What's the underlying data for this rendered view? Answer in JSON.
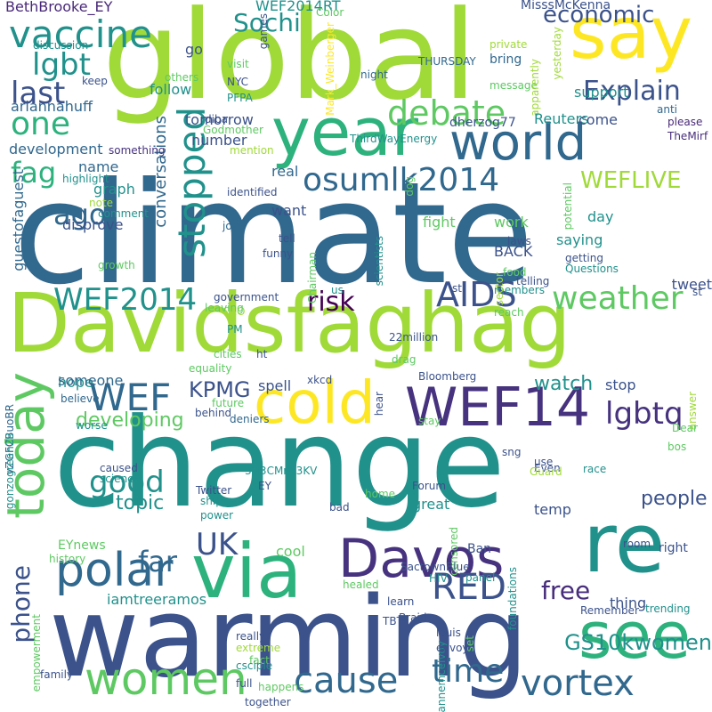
{
  "words": [
    {
      "text": "climate",
      "color": "#31688e"
    },
    {
      "text": "change",
      "color": "#21918c"
    },
    {
      "text": "global",
      "color": "#a0da39"
    },
    {
      "text": "warming",
      "color": "#3b528b"
    },
    {
      "text": "Davidsfaghag",
      "color": "#a0da39"
    },
    {
      "text": "year",
      "color": "#2db27d"
    },
    {
      "text": "via",
      "color": "#2db27d"
    },
    {
      "text": "say",
      "color": "#fde725"
    },
    {
      "text": "world",
      "color": "#31688e"
    },
    {
      "text": "re",
      "color": "#21918c"
    },
    {
      "text": "see",
      "color": "#2db27d"
    },
    {
      "text": "cold",
      "color": "#fde725"
    },
    {
      "text": "WEF14",
      "color": "#46327e"
    },
    {
      "text": "today",
      "color": "#5ec962"
    },
    {
      "text": "Davos",
      "color": "#46327e"
    },
    {
      "text": "women",
      "color": "#5ec962"
    },
    {
      "text": "cause",
      "color": "#31688e"
    },
    {
      "text": "vortex",
      "color": "#31688e"
    },
    {
      "text": "polar",
      "color": "#31688e"
    },
    {
      "text": "vaccine",
      "color": "#21918c"
    },
    {
      "text": "debate",
      "color": "#5ec962"
    },
    {
      "text": "WEF",
      "color": "#31688e"
    },
    {
      "text": "AIDS",
      "color": "#3b528b"
    },
    {
      "text": "weather",
      "color": "#5ec962"
    },
    {
      "text": "RED",
      "color": "#3b528b"
    },
    {
      "text": "time",
      "color": "#31688e"
    },
    {
      "text": "stopped",
      "color": "#21918c"
    },
    {
      "text": "osumlk2014",
      "color": "#31688e"
    },
    {
      "text": "Explain",
      "color": "#3b528b"
    },
    {
      "text": "one",
      "color": "#2db27d"
    },
    {
      "text": "last",
      "color": "#3b528b"
    },
    {
      "text": "lgbt",
      "color": "#21918c"
    },
    {
      "text": "fag",
      "color": "#2db27d"
    },
    {
      "text": "ago",
      "color": "#31688e"
    },
    {
      "text": "WEF2014",
      "color": "#21918c"
    },
    {
      "text": "risk",
      "color": "#440154"
    },
    {
      "text": "lgbtq",
      "color": "#46327e"
    },
    {
      "text": "good",
      "color": "#21918c"
    },
    {
      "text": "UK",
      "color": "#3b528b"
    },
    {
      "text": "far",
      "color": "#31688e"
    },
    {
      "text": "free",
      "color": "#472d7b"
    },
    {
      "text": "phone",
      "color": "#3b528b"
    },
    {
      "text": "KPMG",
      "color": "#3b528b"
    },
    {
      "text": "Sochi",
      "color": "#21918c"
    },
    {
      "text": "economic",
      "color": "#3b528b"
    },
    {
      "text": "WEFLIVE",
      "color": "#a0da39"
    },
    {
      "text": "GS10kwomen",
      "color": "#21918c"
    },
    {
      "text": "people",
      "color": "#3b528b"
    },
    {
      "text": "conversations",
      "color": "#31688e"
    },
    {
      "text": "developing",
      "color": "#5ec962"
    },
    {
      "text": "topic",
      "color": "#21918c"
    },
    {
      "text": "watch",
      "color": "#21918c"
    },
    {
      "text": "BethBrooke_EY",
      "color": "#482878"
    },
    {
      "text": "WEF2014RT",
      "color": "#21918c"
    },
    {
      "text": "MisssMcKenna",
      "color": "#3b528b"
    },
    {
      "text": "Color",
      "color": "#5ec962"
    },
    {
      "text": "games",
      "color": "#3b528b"
    },
    {
      "text": "Mark_Weinberger",
      "color": "#fde725"
    },
    {
      "text": "go",
      "color": "#3b528b"
    },
    {
      "text": "discussion",
      "color": "#21918c"
    },
    {
      "text": "others",
      "color": "#5ec962"
    },
    {
      "text": "visit",
      "color": "#5ec962"
    },
    {
      "text": "NYC",
      "color": "#3b528b"
    },
    {
      "text": "PFPA",
      "color": "#21918c"
    },
    {
      "text": "night",
      "color": "#31688e"
    },
    {
      "text": "THURSDAY",
      "color": "#31688e"
    },
    {
      "text": "bring",
      "color": "#31688e"
    },
    {
      "text": "private",
      "color": "#a0da39"
    },
    {
      "text": "yesterday",
      "color": "#a0da39"
    },
    {
      "text": "message",
      "color": "#5ec962"
    },
    {
      "text": "apparently",
      "color": "#a0da39"
    },
    {
      "text": "keep",
      "color": "#3b528b"
    },
    {
      "text": "ariannahuff",
      "color": "#31688e"
    },
    {
      "text": "follow",
      "color": "#21918c"
    },
    {
      "text": "support",
      "color": "#21918c"
    },
    {
      "text": "diba",
      "color": "#3b528b"
    },
    {
      "text": "tomorrow",
      "color": "#3b528b"
    },
    {
      "text": "Reuters",
      "color": "#21918c"
    },
    {
      "text": "anti",
      "color": "#31688e"
    },
    {
      "text": "please",
      "color": "#482878"
    },
    {
      "text": "come",
      "color": "#3b528b"
    },
    {
      "text": "dherzog77",
      "color": "#3b528b"
    },
    {
      "text": "Godmother",
      "color": "#5ec962"
    },
    {
      "text": "TheMirf",
      "color": "#472d7b"
    },
    {
      "text": "something",
      "color": "#46327e"
    },
    {
      "text": "mention",
      "color": "#a0da39"
    },
    {
      "text": "number",
      "color": "#3b528b"
    },
    {
      "text": "development",
      "color": "#31688e"
    },
    {
      "text": "highlight",
      "color": "#21918c"
    },
    {
      "text": "ThirdWayEnergy",
      "color": "#21918c"
    },
    {
      "text": "name",
      "color": "#31688e"
    },
    {
      "text": "real",
      "color": "#31688e"
    },
    {
      "text": "graph",
      "color": "#21918c"
    },
    {
      "text": "note",
      "color": "#a0da39"
    },
    {
      "text": "identified",
      "color": "#3b528b"
    },
    {
      "text": "guestofaguest",
      "color": "#31688e"
    },
    {
      "text": "comment",
      "color": "#21918c"
    },
    {
      "text": "dog",
      "color": "#5ec962"
    },
    {
      "text": "want",
      "color": "#3b528b"
    },
    {
      "text": "disprove",
      "color": "#3b528b"
    },
    {
      "text": "join",
      "color": "#31688e"
    },
    {
      "text": "fight",
      "color": "#5ec962"
    },
    {
      "text": "day",
      "color": "#21918c"
    },
    {
      "text": "work",
      "color": "#5ec962"
    },
    {
      "text": "growth",
      "color": "#5ec962"
    },
    {
      "text": "tell",
      "color": "#3b528b"
    },
    {
      "text": "laws",
      "color": "#3b528b"
    },
    {
      "text": "saying",
      "color": "#21918c"
    },
    {
      "text": "potential",
      "color": "#5ec962"
    },
    {
      "text": "getting",
      "color": "#3b528b"
    },
    {
      "text": "Questions",
      "color": "#21918c"
    },
    {
      "text": "funny",
      "color": "#3b528b"
    },
    {
      "text": "BACK",
      "color": "#3b528b"
    },
    {
      "text": "food",
      "color": "#5ec962"
    },
    {
      "text": "telling",
      "color": "#3b528b"
    },
    {
      "text": "tweet",
      "color": "#3b528b"
    },
    {
      "text": "stl",
      "color": "#3b528b"
    },
    {
      "text": "members",
      "color": "#21918c"
    },
    {
      "text": "Chairman",
      "color": "#5ec962"
    },
    {
      "text": "scientists",
      "color": "#21918c"
    },
    {
      "text": "us",
      "color": "#21918c"
    },
    {
      "text": "sector",
      "color": "#a0da39"
    },
    {
      "text": "reach",
      "color": "#5ec962"
    },
    {
      "text": "st",
      "color": "#3b528b"
    },
    {
      "text": "government",
      "color": "#3b528b"
    },
    {
      "text": "CEO",
      "color": "#a0da39"
    },
    {
      "text": "PM",
      "color": "#21918c"
    },
    {
      "text": "leaving",
      "color": "#5ec962"
    },
    {
      "text": "22million",
      "color": "#3b528b"
    },
    {
      "text": "cities",
      "color": "#5ec962"
    },
    {
      "text": "ht",
      "color": "#3b528b"
    },
    {
      "text": "equality",
      "color": "#5ec962"
    },
    {
      "text": "drag",
      "color": "#5ec962"
    },
    {
      "text": "hope",
      "color": "#21918c"
    },
    {
      "text": "someone",
      "color": "#31688e"
    },
    {
      "text": "spell",
      "color": "#3b528b"
    },
    {
      "text": "stop",
      "color": "#3b528b"
    },
    {
      "text": "Bloomberg",
      "color": "#3b528b"
    },
    {
      "text": "xkcd",
      "color": "#3b528b"
    },
    {
      "text": "believe",
      "color": "#31688e"
    },
    {
      "text": "vZGFCBuoBR",
      "color": "#31688e"
    },
    {
      "text": "future",
      "color": "#5ec962"
    },
    {
      "text": "behind",
      "color": "#3b528b"
    },
    {
      "text": "deniers",
      "color": "#31688e"
    },
    {
      "text": "hear",
      "color": "#3b528b"
    },
    {
      "text": "answer",
      "color": "#a0da39"
    },
    {
      "text": "worse",
      "color": "#21918c"
    },
    {
      "text": "gonzogreen29",
      "color": "#21918c"
    },
    {
      "text": "caused",
      "color": "#3b528b"
    },
    {
      "text": "science",
      "color": "#21918c"
    },
    {
      "text": "3G3CMrO3KV",
      "color": "#21918c"
    },
    {
      "text": "EY",
      "color": "#3b528b"
    },
    {
      "text": "stay",
      "color": "#5ec962"
    },
    {
      "text": "sng",
      "color": "#3b528b"
    },
    {
      "text": "Dear",
      "color": "#5ec962"
    },
    {
      "text": "bos",
      "color": "#5ec962"
    },
    {
      "text": "Even",
      "color": "#3b528b"
    },
    {
      "text": "use",
      "color": "#3b528b"
    },
    {
      "text": "Guard",
      "color": "#a0da39"
    },
    {
      "text": "race",
      "color": "#21918c"
    },
    {
      "text": "Twitter",
      "color": "#3b528b"
    },
    {
      "text": "ship",
      "color": "#21918c"
    },
    {
      "text": "power",
      "color": "#21918c"
    },
    {
      "text": "home",
      "color": "#5ec962"
    },
    {
      "text": "Forum",
      "color": "#3b528b"
    },
    {
      "text": "bad",
      "color": "#3b528b"
    },
    {
      "text": "great",
      "color": "#21918c"
    },
    {
      "text": "temp",
      "color": "#3b528b"
    },
    {
      "text": "room",
      "color": "#3b528b"
    },
    {
      "text": "censored",
      "color": "#5ec962"
    },
    {
      "text": "EYnews",
      "color": "#5ec962"
    },
    {
      "text": "cool",
      "color": "#5ec962"
    },
    {
      "text": "Ban",
      "color": "#3b528b"
    },
    {
      "text": "right",
      "color": "#3b528b"
    },
    {
      "text": "history",
      "color": "#5ec962"
    },
    {
      "text": "SactownBlue",
      "color": "#3b528b"
    },
    {
      "text": "HIV",
      "color": "#21918c"
    },
    {
      "text": "panel",
      "color": "#21918c"
    },
    {
      "text": "foundations",
      "color": "#21918c"
    },
    {
      "text": "healed",
      "color": "#5ec962"
    },
    {
      "text": "iamtreeramos",
      "color": "#21918c"
    },
    {
      "text": "thing",
      "color": "#3b528b"
    },
    {
      "text": "learn",
      "color": "#3b528b"
    },
    {
      "text": "TBT",
      "color": "#3b528b"
    },
    {
      "text": "trending",
      "color": "#21918c"
    },
    {
      "text": "Remember",
      "color": "#3b528b"
    },
    {
      "text": "empowerment",
      "color": "#5ec962"
    },
    {
      "text": "Braid",
      "color": "#3b528b"
    },
    {
      "text": "really",
      "color": "#3b528b"
    },
    {
      "text": "louis",
      "color": "#3b528b"
    },
    {
      "text": "extreme",
      "color": "#a0da39"
    },
    {
      "text": "fact",
      "color": "#5ec962"
    },
    {
      "text": "annemcelvoy",
      "color": "#21918c"
    },
    {
      "text": "envoy",
      "color": "#3b528b"
    },
    {
      "text": "set",
      "color": "#5ec962"
    },
    {
      "text": "csciple",
      "color": "#21918c"
    },
    {
      "text": "full",
      "color": "#3b528b"
    },
    {
      "text": "happens",
      "color": "#5ec962"
    },
    {
      "text": "family",
      "color": "#3b528b"
    },
    {
      "text": "together",
      "color": "#3b528b"
    }
  ]
}
